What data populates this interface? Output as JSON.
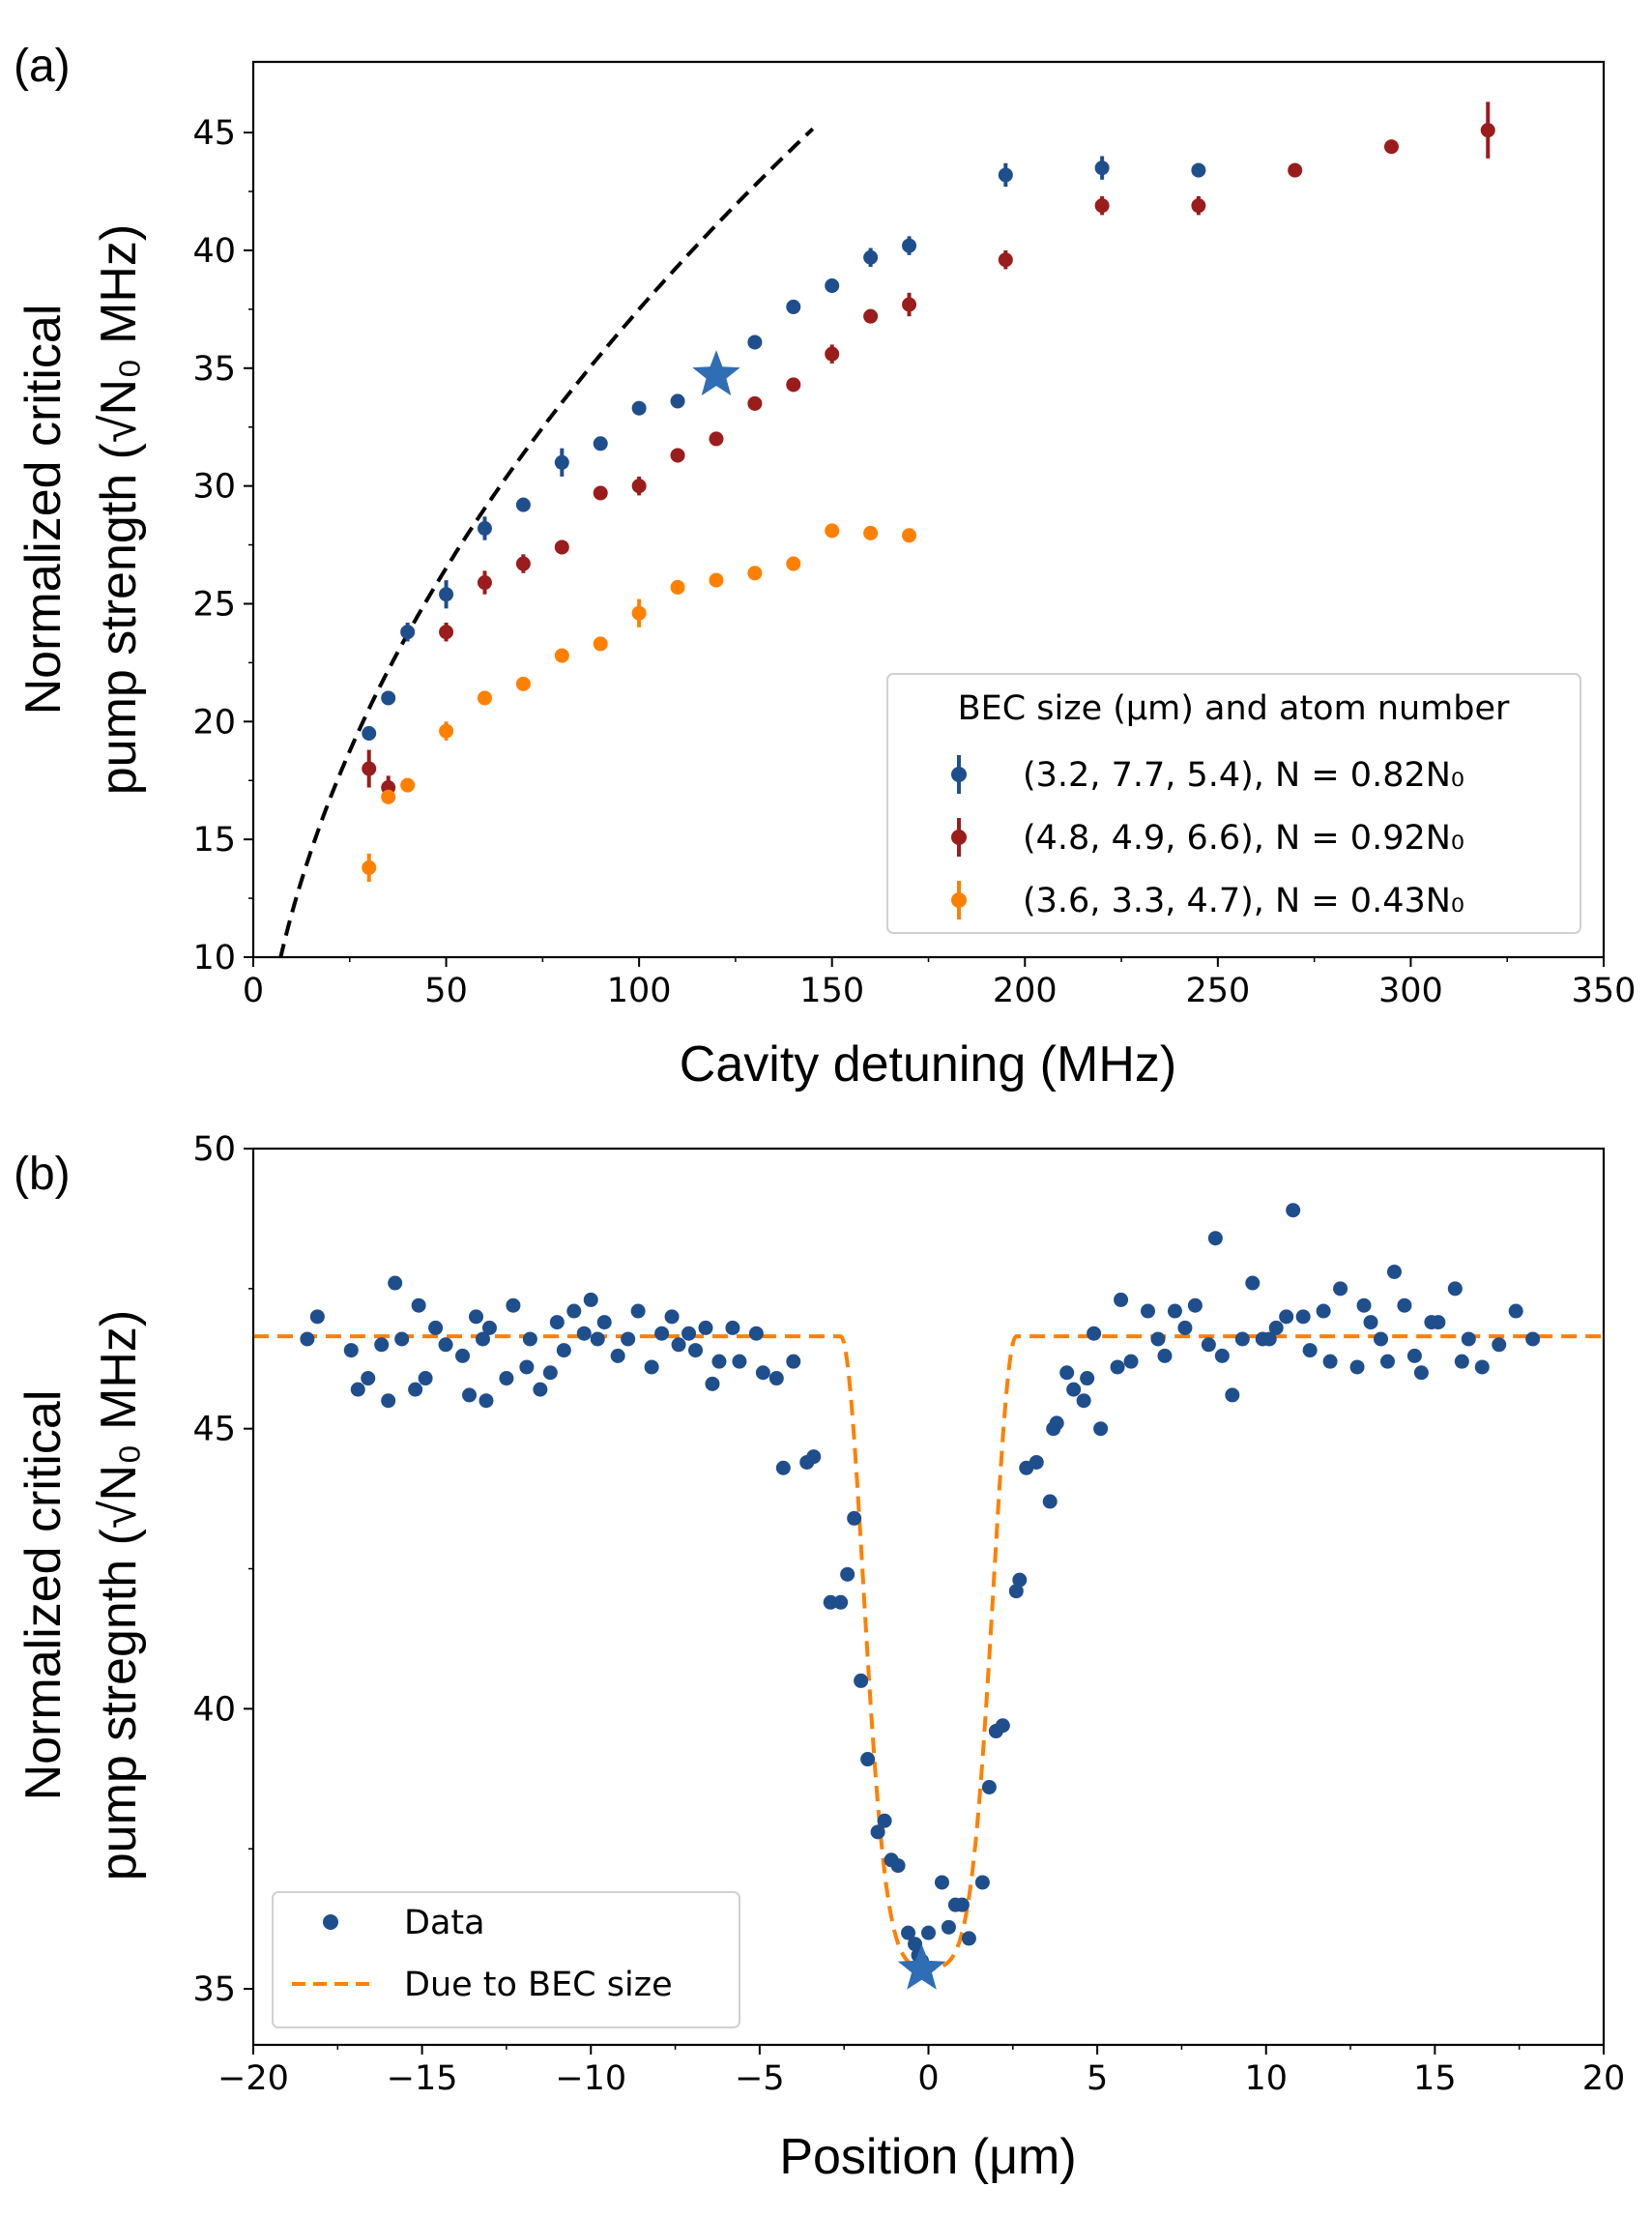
{
  "chart_data": [
    {
      "type": "scatter",
      "panel_label": "(a)",
      "xlabel": "Cavity detuning (MHz)",
      "ylabel_line1": "Normalized critical",
      "ylabel_line2": "pump strength (√N₀ MHz)",
      "xlim": [
        0,
        350
      ],
      "ylim": [
        10,
        48
      ],
      "xticks": [
        0,
        50,
        100,
        150,
        200,
        250,
        300,
        350
      ],
      "yticks": [
        10,
        15,
        20,
        25,
        30,
        35,
        40,
        45
      ],
      "legend_title": "BEC size (μm) and atom number",
      "legend_position": "lower-right",
      "series": [
        {
          "name": "(3.2, 7.7, 5.4), N = 0.82N₀",
          "color": "#1f4e8c",
          "x": [
            30,
            35,
            40,
            50,
            60,
            70,
            80,
            90,
            100,
            110,
            130,
            140,
            150,
            160,
            170,
            195,
            220,
            245
          ],
          "y": [
            19.5,
            21.0,
            23.8,
            25.4,
            28.2,
            29.2,
            31.0,
            31.8,
            33.3,
            33.6,
            36.1,
            37.6,
            38.5,
            39.7,
            40.2,
            43.2,
            43.5,
            43.4
          ],
          "err": [
            0.3,
            0.3,
            0.4,
            0.6,
            0.5,
            0.3,
            0.6,
            0.3,
            0.3,
            0.3,
            0.3,
            0.3,
            0.3,
            0.4,
            0.4,
            0.5,
            0.5,
            0.3
          ]
        },
        {
          "name": "(4.8, 4.9, 6.6), N = 0.92N₀",
          "color": "#9b1c1c",
          "x": [
            30,
            35,
            50,
            60,
            70,
            80,
            90,
            100,
            110,
            120,
            130,
            140,
            150,
            160,
            170,
            195,
            220,
            245,
            270,
            295,
            320
          ],
          "y": [
            18.0,
            17.2,
            23.8,
            25.9,
            26.7,
            27.4,
            29.7,
            30.0,
            31.3,
            32.0,
            33.5,
            34.3,
            35.6,
            37.2,
            37.7,
            39.6,
            41.9,
            41.9,
            43.4,
            44.4,
            45.1
          ],
          "err": [
            0.8,
            0.5,
            0.4,
            0.5,
            0.4,
            0.3,
            0.3,
            0.4,
            0.3,
            0.3,
            0.3,
            0.3,
            0.4,
            0.3,
            0.5,
            0.4,
            0.4,
            0.4,
            0.3,
            0.3,
            1.2
          ]
        },
        {
          "name": "(3.6, 3.3, 4.7), N = 0.43N₀",
          "color": "#ff8000",
          "x": [
            30,
            35,
            40,
            50,
            60,
            70,
            80,
            90,
            100,
            110,
            120,
            130,
            140,
            150,
            160,
            170
          ],
          "y": [
            13.8,
            16.8,
            17.3,
            19.6,
            21.0,
            21.6,
            22.8,
            23.3,
            24.6,
            25.7,
            26.0,
            26.3,
            26.7,
            28.1,
            28.0,
            27.9
          ],
          "err": [
            0.6,
            0.3,
            0.3,
            0.4,
            0.3,
            0.3,
            0.3,
            0.3,
            0.6,
            0.3,
            0.3,
            0.3,
            0.3,
            0.3,
            0.3,
            0.3
          ]
        }
      ],
      "highlight_star": {
        "x": 120,
        "y": 34.7,
        "color": "#2f6db5"
      },
      "reference_curve": {
        "style": "dashed",
        "color": "#000000",
        "formula": "y = 3.75*sqrt(x)",
        "x_start": 7,
        "x_end": 145
      }
    },
    {
      "type": "scatter",
      "panel_label": "(b)",
      "xlabel": "Position (μm)",
      "ylabel_line1": "Normalized critical",
      "ylabel_line2": "pump stregnth (√N₀ MHz)",
      "xlim": [
        -20,
        20
      ],
      "ylim": [
        34,
        50
      ],
      "xticks": [
        -20,
        -15,
        -10,
        -5,
        0,
        5,
        10,
        15,
        20
      ],
      "xtick_labels": [
        "−20",
        "−15",
        "−10",
        "−5",
        "0",
        "5",
        "10",
        "15",
        "20"
      ],
      "yticks": [
        35,
        40,
        45,
        50
      ],
      "legend_position": "lower-left",
      "legend": [
        {
          "label": "Data",
          "kind": "dot",
          "color": "#1f4e8c"
        },
        {
          "label": "Due to BEC size",
          "kind": "dashed",
          "color": "#ff8000"
        }
      ],
      "data": {
        "name": "Data",
        "color": "#1f4e8c",
        "x": [
          -18.4,
          -18.1,
          -17.1,
          -16.9,
          -16.6,
          -16.2,
          -16.0,
          -15.8,
          -15.6,
          -15.2,
          -15.1,
          -14.9,
          -14.6,
          -14.3,
          -13.8,
          -13.6,
          -13.4,
          -13.2,
          -13.1,
          -13.0,
          -12.5,
          -12.3,
          -11.9,
          -11.8,
          -11.5,
          -11.2,
          -11.0,
          -10.8,
          -10.5,
          -10.2,
          -10.0,
          -9.8,
          -9.6,
          -9.2,
          -8.9,
          -8.6,
          -8.2,
          -7.9,
          -7.6,
          -7.4,
          -7.1,
          -6.9,
          -6.6,
          -6.4,
          -6.2,
          -5.8,
          -5.6,
          -5.1,
          -4.9,
          -4.5,
          -4.3,
          -4.0,
          -3.6,
          -3.4,
          -2.9,
          -2.6,
          -2.4,
          -2.2,
          -2.0,
          -1.8,
          -1.5,
          -1.3,
          -1.1,
          -0.9,
          -0.6,
          -0.4,
          -0.3,
          -0.2,
          0.0,
          0.4,
          0.6,
          0.8,
          1.0,
          1.2,
          1.6,
          1.8,
          2.0,
          2.2,
          2.6,
          2.7,
          2.9,
          3.2,
          3.6,
          3.7,
          3.8,
          4.1,
          4.3,
          4.6,
          4.7,
          4.9,
          5.1,
          5.6,
          5.7,
          6.0,
          6.5,
          6.8,
          7.0,
          7.3,
          7.6,
          7.9,
          8.3,
          8.5,
          8.7,
          9.0,
          9.3,
          9.6,
          9.9,
          10.1,
          10.3,
          10.6,
          10.8,
          11.1,
          11.3,
          11.7,
          11.9,
          12.2,
          12.7,
          12.9,
          13.1,
          13.4,
          13.6,
          13.8,
          14.1,
          14.4,
          14.6,
          14.9,
          15.1,
          15.6,
          15.8,
          16.0,
          16.4,
          16.9,
          17.4,
          17.9
        ],
        "y": [
          46.6,
          47.0,
          46.4,
          45.7,
          45.9,
          46.5,
          45.5,
          47.6,
          46.6,
          45.7,
          47.2,
          45.9,
          46.8,
          46.5,
          46.3,
          45.6,
          47.0,
          46.6,
          45.5,
          46.8,
          45.9,
          47.2,
          46.1,
          46.6,
          45.7,
          46.0,
          46.9,
          46.4,
          47.1,
          46.7,
          47.3,
          46.6,
          46.9,
          46.3,
          46.6,
          47.1,
          46.1,
          46.7,
          47.0,
          46.5,
          46.7,
          46.4,
          46.8,
          45.8,
          46.2,
          46.8,
          46.2,
          46.7,
          46.0,
          45.9,
          44.3,
          46.2,
          44.4,
          44.5,
          41.9,
          41.9,
          42.4,
          43.4,
          40.5,
          39.1,
          37.8,
          38.0,
          37.3,
          37.2,
          36.0,
          35.8,
          35.6,
          35.5,
          36.0,
          36.9,
          36.1,
          36.5,
          36.5,
          35.9,
          36.9,
          38.6,
          39.6,
          39.7,
          42.1,
          42.3,
          44.3,
          44.4,
          43.7,
          45.0,
          45.1,
          46.0,
          45.7,
          45.5,
          45.9,
          46.7,
          45.0,
          46.1,
          47.3,
          46.2,
          47.1,
          46.6,
          46.3,
          47.1,
          46.8,
          47.2,
          46.5,
          48.4,
          46.3,
          45.6,
          46.6,
          47.6,
          46.6,
          46.6,
          46.8,
          47.0,
          48.9,
          47.0,
          46.4,
          47.1,
          46.2,
          47.5,
          46.1,
          47.2,
          46.9,
          46.6,
          46.2,
          47.8,
          47.2,
          46.3,
          46.0,
          46.9,
          46.9,
          47.5,
          46.2,
          46.6,
          46.1,
          46.5,
          47.1,
          46.6
        ]
      },
      "fit_curve": {
        "name": "Due to BEC size",
        "style": "dashed",
        "color": "#ff8000",
        "baseline": 46.65,
        "minimum": 35.35,
        "center": 0,
        "flat_halfwidth": 2.6,
        "gaussian_width": 0.95
      },
      "highlight_star": {
        "x": -0.2,
        "y": 35.35,
        "color": "#2f6db5"
      }
    }
  ]
}
